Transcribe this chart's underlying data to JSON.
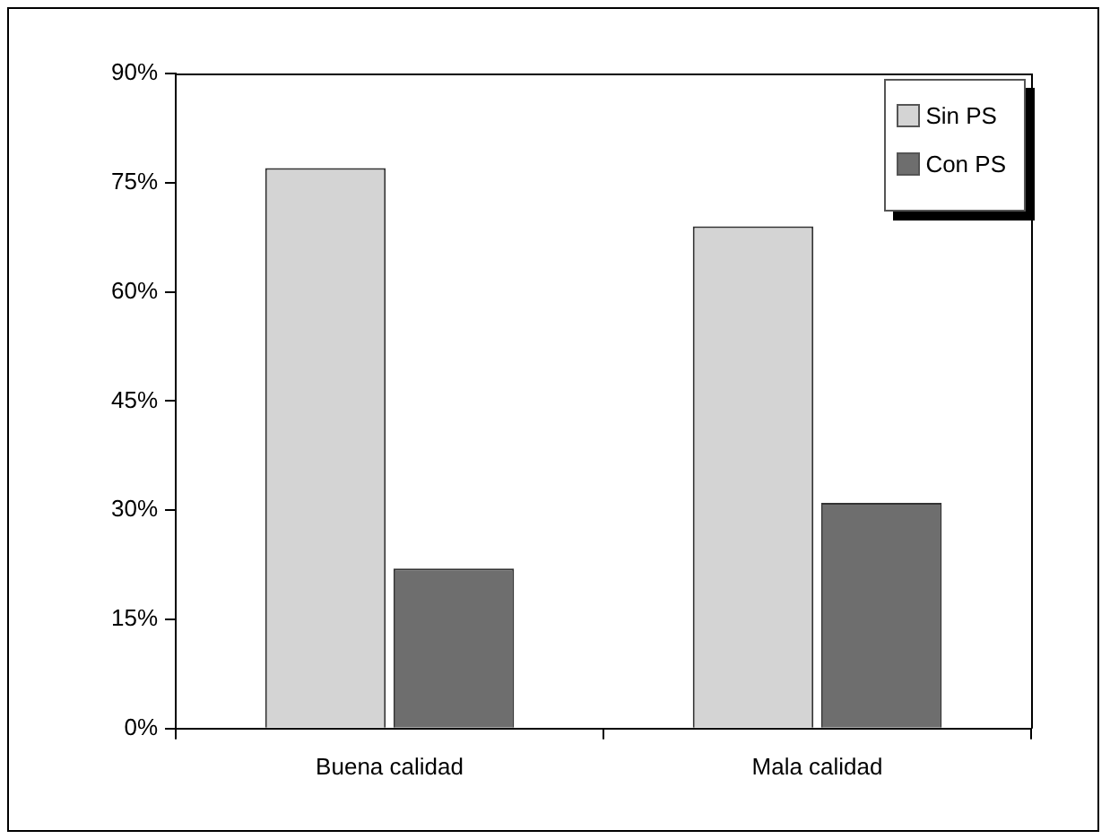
{
  "chart_data": {
    "type": "bar",
    "categories": [
      "Buena calidad",
      "Mala calidad"
    ],
    "series": [
      {
        "name": "Sin PS",
        "color": "#d4d4d4",
        "values": [
          77,
          69
        ]
      },
      {
        "name": "Con PS",
        "color": "#6e6e6e",
        "values": [
          22,
          31
        ]
      }
    ],
    "ylim": [
      0,
      90
    ],
    "yticks": [
      {
        "value": 0,
        "label": "0%"
      },
      {
        "value": 15,
        "label": "15%"
      },
      {
        "value": 30,
        "label": "30%"
      },
      {
        "value": 45,
        "label": "45%"
      },
      {
        "value": 60,
        "label": "60%"
      },
      {
        "value": 75,
        "label": "75%"
      },
      {
        "value": 90,
        "label": "90%"
      }
    ],
    "legend": "top right"
  }
}
